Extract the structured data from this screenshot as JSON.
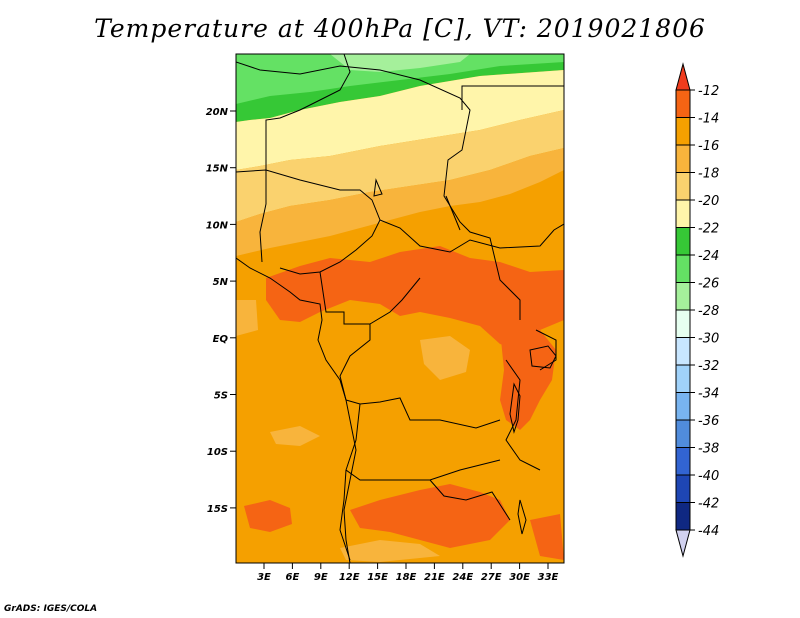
{
  "title": "Temperature at 400hPa [C], VT: 2019021806",
  "credit": "GrADS: IGES/COLA",
  "map": {
    "lat_labels": [
      "20N",
      "15N",
      "10N",
      "5N",
      "EQ",
      "5S",
      "10S",
      "15S"
    ],
    "lon_labels": [
      "3E",
      "6E",
      "9E",
      "12E",
      "15E",
      "18E",
      "21E",
      "24E",
      "27E",
      "30E",
      "33E"
    ]
  },
  "colorbar": {
    "labels": [
      "-12",
      "-14",
      "-16",
      "-18",
      "-20",
      "-22",
      "-24",
      "-26",
      "-28",
      "-30",
      "-32",
      "-34",
      "-36",
      "-38",
      "-40",
      "-42",
      "-44"
    ],
    "colors": [
      "#f03c1e",
      "#f56414",
      "#f5a000",
      "#f8b43c",
      "#fad26e",
      "#fff5aa",
      "#36c836",
      "#64e164",
      "#a5f09b",
      "#e6fff0",
      "#c8e6ff",
      "#a0d2fa",
      "#78b4f0",
      "#508cdc",
      "#3264d2",
      "#1e46b4",
      "#0f2882",
      "#0a0a5a",
      "#d2d2f0"
    ]
  }
}
